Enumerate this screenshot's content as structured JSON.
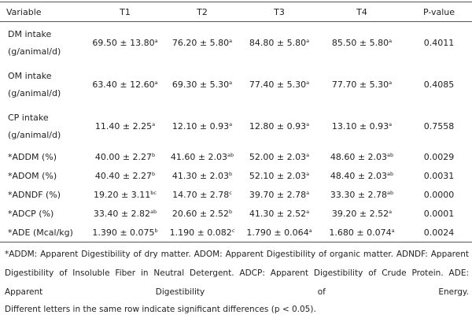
{
  "headers": [
    "Variable",
    "T1",
    "T2",
    "T3",
    "T4",
    "P-value"
  ],
  "rows": [
    {
      "label": [
        "DM intake",
        "(g/animal/d)"
      ],
      "cells": [
        [
          "69.50 ± 13.80",
          "a"
        ],
        [
          "76.20 ± 5.80",
          "a"
        ],
        [
          "84.80 ± 5.80",
          "a"
        ],
        [
          "85.50 ± 5.80",
          "a"
        ]
      ],
      "p": "0.4011"
    },
    {
      "label": [
        "OM intake",
        "(g/animal/d)"
      ],
      "cells": [
        [
          "63.40 ± 12.60",
          "a"
        ],
        [
          "69.30 ± 5.30",
          "a"
        ],
        [
          "77.40 ± 5.30",
          "a"
        ],
        [
          "77.70 ± 5.30",
          "a"
        ]
      ],
      "p": "0.4085"
    },
    {
      "label": [
        "CP intake",
        "(g/animal/d)"
      ],
      "cells": [
        [
          "11.40 ± 2.25",
          "a"
        ],
        [
          "12.10 ± 0.93",
          "a"
        ],
        [
          "12.80 ± 0.93",
          "a"
        ],
        [
          "13.10 ± 0.93",
          "a"
        ]
      ],
      "p": "0.7558"
    },
    {
      "label": [
        "*ADDM (%)"
      ],
      "cells": [
        [
          "40.00 ± 2.27",
          "b"
        ],
        [
          "41.60 ± 2.03",
          "ab"
        ],
        [
          "52.00 ± 2.03",
          "a"
        ],
        [
          "48.60 ± 2.03",
          "ab"
        ]
      ],
      "p": "0.0029"
    },
    {
      "label": [
        "*ADOM (%)"
      ],
      "cells": [
        [
          "40.40 ± 2.27",
          "b"
        ],
        [
          "41.30 ± 2.03",
          "b"
        ],
        [
          "52.10 ± 2.03",
          "a"
        ],
        [
          "48.40 ± 2.03",
          "ab"
        ]
      ],
      "p": "0.0031"
    },
    {
      "label": [
        "*ADNDF (%)"
      ],
      "cells": [
        [
          "19.20 ± 3.11",
          "bc"
        ],
        [
          "14.70 ± 2.78",
          "c"
        ],
        [
          "39.70 ± 2.78",
          "a"
        ],
        [
          "33.30 ± 2.78",
          "ab"
        ]
      ],
      "p": "0.0000"
    },
    {
      "label": [
        "*ADCP (%)"
      ],
      "cells": [
        [
          "33.40 ± 2.82",
          "ab"
        ],
        [
          "20.60 ± 2.52",
          "b"
        ],
        [
          "41.30 ± 2.52",
          "a"
        ],
        [
          "39.20 ± 2.52",
          "a"
        ]
      ],
      "p": "0.0001"
    },
    {
      "label": [
        "*ADE (Mcal/kg)"
      ],
      "cells": [
        [
          "1.390 ± 0.075",
          "b"
        ],
        [
          "1.190 ± 0.082",
          "c"
        ],
        [
          "1.790 ± 0.064",
          "a"
        ],
        [
          "1.680 ± 0.074",
          "a"
        ]
      ],
      "p": "0.0024"
    }
  ],
  "footnote": "*ADDM: Apparent Digestibility of dry matter. ADOM: Apparent Digestibility of organic matter. ADNDF: Apparent Digestibility of Insoluble Fiber in Neutral Detergent. ADCP: Apparent Digestibility of Crude Protein. ADE: Apparent Digestibility of Energy.",
  "significance_note": "Different letters in the same row indicate significant differences (p < 0.05)."
}
